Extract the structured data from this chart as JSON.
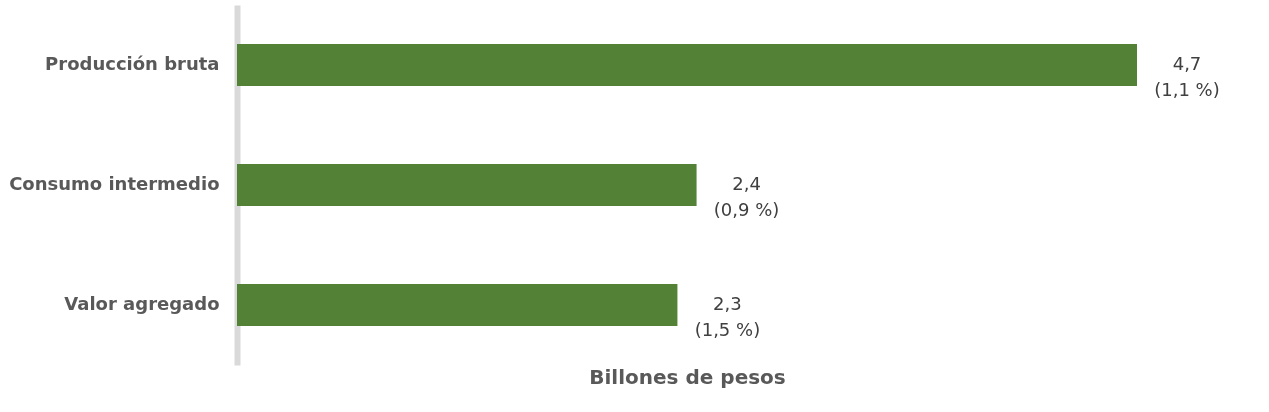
{
  "chart_data": {
    "type": "bar",
    "orientation": "horizontal",
    "xlabel": "Billones de pesos",
    "categories": [
      "Producción bruta",
      "Consumo intermedio",
      "Valor agregado"
    ],
    "values": [
      4.7,
      2.4,
      2.3
    ],
    "color": "#538135",
    "value_labels": [
      "4,7\n(1,1 %)",
      "2,4\n(0,9 %)",
      "2,3\n(1,5 %)"
    ]
  }
}
